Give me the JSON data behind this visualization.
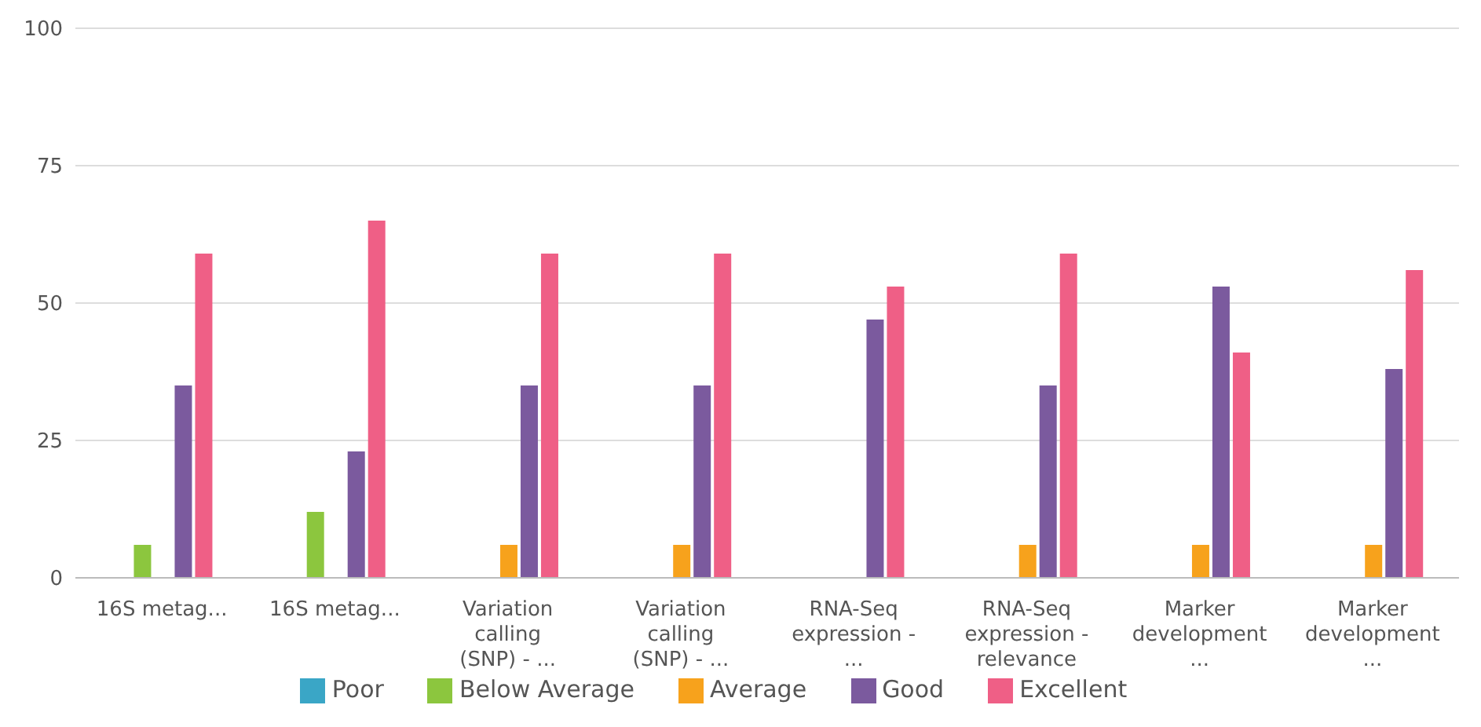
{
  "chart_data": {
    "type": "bar",
    "categories": [
      "16S metag...",
      "16S metag...",
      "Variation calling (SNP) - ...",
      "Variation calling (SNP) - ...",
      "RNA-Seq expression - ...",
      "RNA-Seq expression - relevance",
      "Marker development ...",
      "Marker development ..."
    ],
    "series": [
      {
        "name": "Poor",
        "color": "#3aa6c6",
        "values": [
          0,
          0,
          0,
          0,
          0,
          0,
          0,
          0
        ]
      },
      {
        "name": "Below Average",
        "color": "#8cc63e",
        "values": [
          6,
          12,
          0,
          0,
          0,
          0,
          0,
          0
        ]
      },
      {
        "name": "Average",
        "color": "#f7a21c",
        "values": [
          0,
          0,
          6,
          6,
          0,
          6,
          6,
          6
        ]
      },
      {
        "name": "Good",
        "color": "#7b5a9e",
        "values": [
          35,
          23,
          35,
          35,
          47,
          35,
          53,
          38
        ]
      },
      {
        "name": "Excellent",
        "color": "#ef5f86",
        "values": [
          59,
          65,
          59,
          59,
          53,
          59,
          41,
          56
        ]
      }
    ],
    "ylim": [
      0,
      100
    ],
    "yticks": [
      0,
      25,
      50,
      75,
      100
    ],
    "grid": "y",
    "legend": "bottom"
  }
}
